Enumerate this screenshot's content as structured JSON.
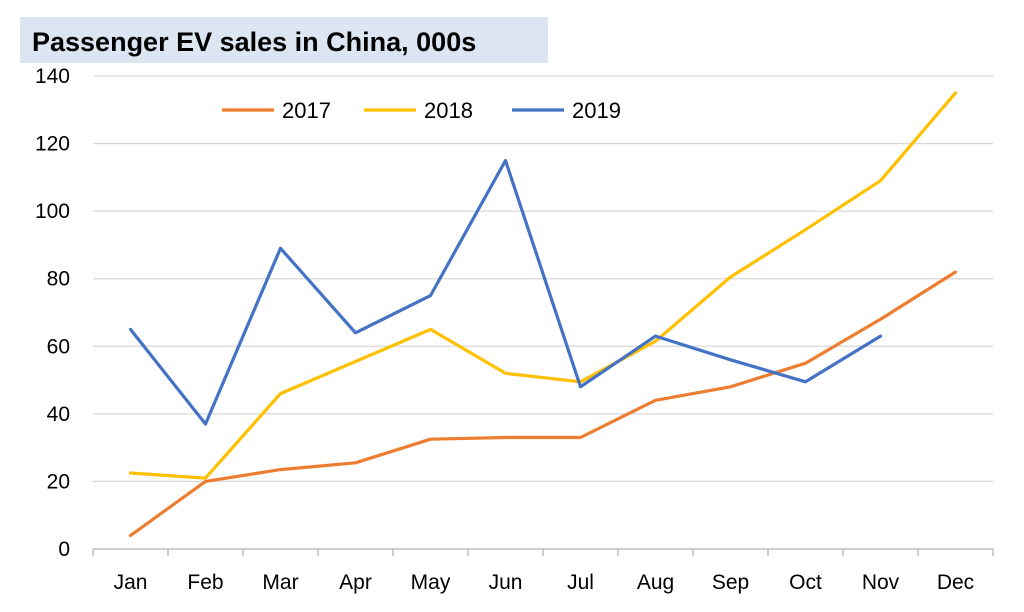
{
  "chart_data": {
    "type": "line",
    "title": "Passenger EV sales in China, 000s",
    "categories": [
      "Jan",
      "Feb",
      "Mar",
      "Apr",
      "May",
      "Jun",
      "Jul",
      "Aug",
      "Sep",
      "Oct",
      "Nov",
      "Dec"
    ],
    "series": [
      {
        "name": "2017",
        "color": "#ED7D31",
        "values": [
          4,
          20,
          23.5,
          25.5,
          32.5,
          33,
          33,
          44,
          48,
          55,
          68,
          82
        ]
      },
      {
        "name": "2018",
        "color": "#FFC000",
        "values": [
          22.5,
          21,
          46,
          55.5,
          65,
          52,
          49.5,
          61.5,
          80.5,
          94.5,
          109,
          135
        ]
      },
      {
        "name": "2019",
        "color": "#4472C4",
        "values": [
          65,
          37,
          89,
          64,
          75,
          115,
          48,
          63,
          56,
          49.5,
          63,
          null
        ]
      }
    ],
    "xlabel": "",
    "ylabel": "",
    "ylim": [
      0,
      140
    ],
    "yticks": [
      0,
      20,
      40,
      60,
      80,
      100,
      120,
      140
    ],
    "grid": true,
    "legend": "top"
  }
}
